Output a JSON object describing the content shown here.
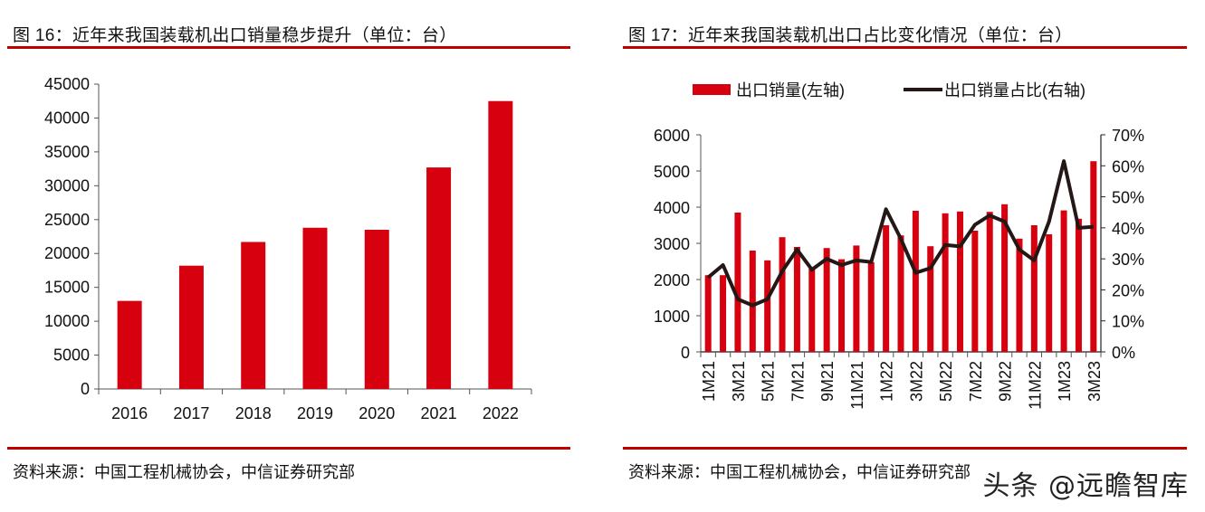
{
  "colors": {
    "accent": "#c00000",
    "bar": "#d7000f",
    "line": "#231815",
    "axis": "#555555",
    "text": "#111111"
  },
  "figure16": {
    "title": "图 16：近年来我国装载机出口销量稳步提升（单位：台）",
    "source": "资料来源：中国工程机械协会，中信证券研究部"
  },
  "figure17": {
    "title": "图 17：近年来我国装载机出口占比变化情况（单位：台）",
    "source": "资料来源：中国工程机械协会，中信证券研究部",
    "legend": {
      "bar_label": "出口销量(左轴)",
      "line_label": "出口销量占比(右轴)"
    }
  },
  "watermark": "头条 @远瞻智库",
  "chart_data": [
    {
      "type": "bar",
      "title": "图 16：近年来我国装载机出口销量稳步提升（单位：台）",
      "xlabel": "",
      "ylabel": "",
      "categories": [
        "2016",
        "2017",
        "2018",
        "2019",
        "2020",
        "2021",
        "2022"
      ],
      "values": [
        13000,
        18200,
        21700,
        23800,
        23500,
        32700,
        42500
      ],
      "ylim": [
        0,
        45000
      ],
      "yticks": [
        "0",
        "5000",
        "10000",
        "15000",
        "20000",
        "25000",
        "30000",
        "35000",
        "40000",
        "45000"
      ],
      "grid": false
    },
    {
      "type": "bar+line",
      "title": "图 17：近年来我国装载机出口占比变化情况（单位：台）",
      "categories": [
        "1M21",
        "2M21",
        "3M21",
        "4M21",
        "5M21",
        "6M21",
        "7M21",
        "8M21",
        "9M21",
        "10M21",
        "11M21",
        "12M21",
        "1M22",
        "2M22",
        "3M22",
        "4M22",
        "5M22",
        "6M22",
        "7M22",
        "8M22",
        "9M22",
        "10M22",
        "11M22",
        "12M22",
        "1M23",
        "2M23",
        "3M23"
      ],
      "xticklabels": [
        "1M21",
        "3M21",
        "5M21",
        "7M21",
        "9M21",
        "11M21",
        "1M22",
        "3M22",
        "5M22",
        "7M22",
        "9M22",
        "11M22",
        "1M23",
        "3M23"
      ],
      "series": [
        {
          "name": "出口销量(左轴)",
          "axis": "left",
          "type": "bar",
          "values": [
            2120,
            2120,
            3850,
            2800,
            2530,
            3170,
            2900,
            2300,
            2870,
            2560,
            2940,
            2480,
            3500,
            3220,
            3900,
            2920,
            3830,
            3880,
            3350,
            3870,
            4080,
            3130,
            3500,
            3250,
            3910,
            3680,
            5270
          ]
        },
        {
          "name": "出口销量占比(右轴)",
          "axis": "right",
          "type": "line",
          "values": [
            24.0,
            28.0,
            17.0,
            15.0,
            17.0,
            26.0,
            33.0,
            26.5,
            30.0,
            28.0,
            29.5,
            29.0,
            46.0,
            36.5,
            25.5,
            27.0,
            34.5,
            34.0,
            41.0,
            44.0,
            42.0,
            33.0,
            29.5,
            42.0,
            61.5,
            40.0,
            40.3
          ]
        }
      ],
      "ylim_left": [
        0,
        6000
      ],
      "yticks_left": [
        "0",
        "1000",
        "2000",
        "3000",
        "4000",
        "5000",
        "6000"
      ],
      "ylim_right": [
        0,
        70
      ],
      "yticks_right": [
        "0%",
        "10%",
        "20%",
        "30%",
        "40%",
        "50%",
        "60%",
        "70%"
      ],
      "legend_position": "top-center",
      "grid": false
    }
  ]
}
